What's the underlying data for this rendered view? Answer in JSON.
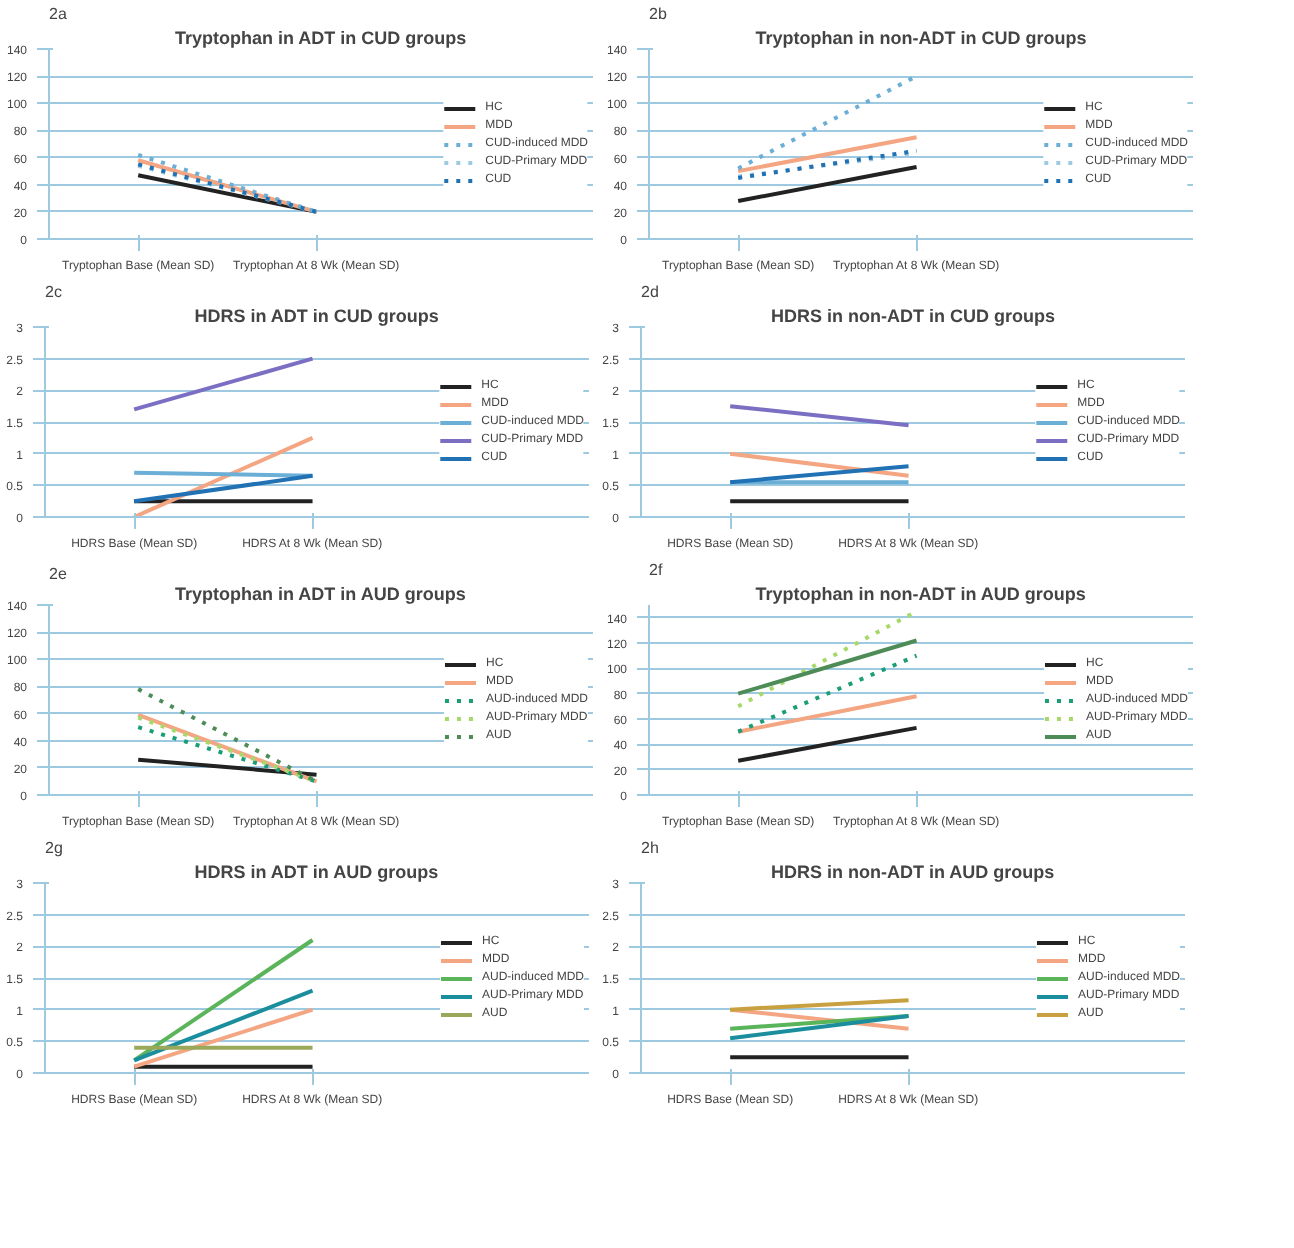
{
  "chart_data": [
    {
      "type": "line",
      "annotations": [
        "2a"
      ],
      "title": "Tryptophan in ADT in CUD groups",
      "categories": [
        "Tryptophan Base (Mean SD)",
        "Tryptophan At 8 Wk (Mean SD)"
      ],
      "ylim": [
        0,
        140
      ],
      "yticks": [
        0,
        20,
        40,
        60,
        80,
        100,
        120,
        140
      ],
      "grid": "y",
      "legend": "right",
      "series": [
        {
          "name": "HC",
          "color": "#222222",
          "line_style": "solid",
          "values": [
            47,
            20
          ]
        },
        {
          "name": "MDD",
          "color": "#f4a582",
          "line_style": "solid",
          "values": [
            58,
            20
          ]
        },
        {
          "name": "CUD-induced MDD",
          "color": "#6baed6",
          "line_style": "dotted",
          "values": [
            62,
            20
          ]
        },
        {
          "name": "CUD-Primary MDD",
          "color": "#9ecae1",
          "line_style": "dotted",
          "values": [
            54,
            20
          ]
        },
        {
          "name": "CUD",
          "color": "#2171b5",
          "line_style": "dotted",
          "values": [
            55,
            20
          ]
        }
      ]
    },
    {
      "type": "line",
      "annotations": [
        "2b"
      ],
      "title": "Tryptophan in non-ADT in CUD groups",
      "categories": [
        "Tryptophan Base (Mean SD)",
        "Tryptophan At 8 Wk (Mean SD)"
      ],
      "ylim": [
        0,
        140
      ],
      "yticks": [
        0,
        20,
        40,
        60,
        80,
        100,
        120,
        140
      ],
      "grid": "y",
      "legend": "right",
      "series": [
        {
          "name": "HC",
          "color": "#222222",
          "line_style": "solid",
          "values": [
            28,
            53
          ]
        },
        {
          "name": "MDD",
          "color": "#f4a582",
          "line_style": "solid",
          "values": [
            50,
            75
          ]
        },
        {
          "name": "CUD-induced MDD",
          "color": "#6baed6",
          "line_style": "dotted",
          "values": [
            52,
            120
          ]
        },
        {
          "name": "CUD-Primary MDD",
          "color": "#9ecae1",
          "line_style": "dotted",
          "values": [
            46,
            63
          ]
        },
        {
          "name": "CUD",
          "color": "#2171b5",
          "line_style": "dotted",
          "values": [
            45,
            65
          ]
        }
      ]
    },
    {
      "type": "line",
      "annotations": [
        "2c"
      ],
      "title": "HDRS in ADT in CUD groups",
      "categories": [
        "HDRS Base (Mean SD)",
        "HDRS At 8 Wk (Mean SD)"
      ],
      "ylim": [
        0,
        3
      ],
      "yticks": [
        0,
        0.5,
        1,
        1.5,
        2,
        2.5,
        3
      ],
      "grid": "y",
      "legend": "right",
      "series": [
        {
          "name": "HC",
          "color": "#222222",
          "line_style": "solid",
          "values": [
            0.25,
            0.25
          ]
        },
        {
          "name": "MDD",
          "color": "#f4a582",
          "line_style": "solid",
          "values": [
            0,
            1.25
          ]
        },
        {
          "name": "CUD-induced MDD",
          "color": "#6baed6",
          "line_style": "solid",
          "values": [
            0.7,
            0.65
          ]
        },
        {
          "name": "CUD-Primary MDD",
          "color": "#7b6fc4",
          "line_style": "solid",
          "values": [
            1.7,
            2.5
          ]
        },
        {
          "name": "CUD",
          "color": "#2171b5",
          "line_style": "solid",
          "values": [
            0.25,
            0.65
          ]
        }
      ]
    },
    {
      "type": "line",
      "annotations": [
        "2d"
      ],
      "title": "HDRS in non-ADT in CUD groups",
      "categories": [
        "HDRS Base (Mean SD)",
        "HDRS At 8 Wk (Mean SD)"
      ],
      "ylim": [
        0,
        3
      ],
      "yticks": [
        0,
        0.5,
        1,
        1.5,
        2,
        2.5,
        3
      ],
      "grid": "y",
      "legend": "right",
      "series": [
        {
          "name": "HC",
          "color": "#222222",
          "line_style": "solid",
          "values": [
            0.25,
            0.25
          ]
        },
        {
          "name": "MDD",
          "color": "#f4a582",
          "line_style": "solid",
          "values": [
            1.0,
            0.65
          ]
        },
        {
          "name": "CUD-induced MDD",
          "color": "#6baed6",
          "line_style": "solid",
          "values": [
            0.55,
            0.55
          ]
        },
        {
          "name": "CUD-Primary MDD",
          "color": "#7b6fc4",
          "line_style": "solid",
          "values": [
            1.75,
            1.45
          ]
        },
        {
          "name": "CUD",
          "color": "#2171b5",
          "line_style": "solid",
          "values": [
            0.55,
            0.8
          ]
        }
      ]
    },
    {
      "type": "line",
      "annotations": [
        "2e"
      ],
      "title": "Tryptophan in ADT in AUD groups",
      "categories": [
        "Tryptophan Base (Mean SD)",
        "Tryptophan At 8 Wk (Mean SD)"
      ],
      "ylim": [
        0,
        140
      ],
      "yticks": [
        0,
        20,
        40,
        60,
        80,
        100,
        120,
        140
      ],
      "grid": "y",
      "legend": "right",
      "series": [
        {
          "name": "HC",
          "color": "#222222",
          "line_style": "solid",
          "values": [
            26,
            15
          ]
        },
        {
          "name": "MDD",
          "color": "#f4a582",
          "line_style": "solid",
          "values": [
            59,
            10
          ]
        },
        {
          "name": "AUD-induced MDD",
          "color": "#1b9e77",
          "line_style": "dotted",
          "values": [
            50,
            10
          ]
        },
        {
          "name": "AUD-Primary MDD",
          "color": "#a6d96a",
          "line_style": "dotted",
          "values": [
            57,
            10
          ]
        },
        {
          "name": "AUD",
          "color": "#4d8c57",
          "line_style": "dotted",
          "values": [
            78,
            10
          ]
        }
      ]
    },
    {
      "type": "line",
      "annotations": [
        "2f"
      ],
      "title": "Tryptophan in non-ADT in AUD groups",
      "categories": [
        "Tryptophan Base (Mean SD)",
        "Tryptophan At 8 Wk (Mean SD)"
      ],
      "ylim": [
        0,
        150
      ],
      "yticks": [
        0,
        20,
        40,
        60,
        80,
        100,
        120,
        140
      ],
      "grid": "y",
      "legend": "right",
      "series": [
        {
          "name": "HC",
          "color": "#222222",
          "line_style": "solid",
          "values": [
            27,
            53
          ]
        },
        {
          "name": "MDD",
          "color": "#f4a582",
          "line_style": "solid",
          "values": [
            50,
            78
          ]
        },
        {
          "name": "AUD-induced MDD",
          "color": "#1b9e77",
          "line_style": "dotted",
          "values": [
            50,
            110
          ]
        },
        {
          "name": "AUD-Primary MDD",
          "color": "#a6d96a",
          "line_style": "dotted",
          "values": [
            70,
            145
          ]
        },
        {
          "name": "AUD",
          "color": "#4d8c57",
          "line_style": "solid",
          "values": [
            80,
            122
          ]
        }
      ]
    },
    {
      "type": "line",
      "annotations": [
        "2g"
      ],
      "title": "HDRS in ADT in AUD groups",
      "categories": [
        "HDRS Base (Mean SD)",
        "HDRS At 8 Wk (Mean SD)"
      ],
      "ylim": [
        0,
        3
      ],
      "yticks": [
        0,
        0.5,
        1,
        1.5,
        2,
        2.5,
        3
      ],
      "grid": "y",
      "legend": "right",
      "series": [
        {
          "name": "HC",
          "color": "#222222",
          "line_style": "solid",
          "values": [
            0.1,
            0.1
          ]
        },
        {
          "name": "MDD",
          "color": "#f4a582",
          "line_style": "solid",
          "values": [
            0.1,
            1.0
          ]
        },
        {
          "name": "AUD-induced MDD",
          "color": "#5ab45a",
          "line_style": "solid",
          "values": [
            0.2,
            2.1
          ]
        },
        {
          "name": "AUD-Primary MDD",
          "color": "#1b8e9e",
          "line_style": "solid",
          "values": [
            0.2,
            1.3
          ]
        },
        {
          "name": "AUD",
          "color": "#9aa85a",
          "line_style": "solid",
          "values": [
            0.4,
            0.4
          ]
        }
      ]
    },
    {
      "type": "line",
      "annotations": [
        "2h"
      ],
      "title": "HDRS in non-ADT in AUD groups",
      "categories": [
        "HDRS Base (Mean SD)",
        "HDRS At 8 Wk (Mean SD)"
      ],
      "ylim": [
        0,
        3
      ],
      "yticks": [
        0,
        0.5,
        1,
        1.5,
        2,
        2.5,
        3
      ],
      "grid": "y",
      "legend": "right",
      "series": [
        {
          "name": "HC",
          "color": "#222222",
          "line_style": "solid",
          "values": [
            0.25,
            0.25
          ]
        },
        {
          "name": "MDD",
          "color": "#f4a582",
          "line_style": "solid",
          "values": [
            1.0,
            0.7
          ]
        },
        {
          "name": "AUD-induced MDD",
          "color": "#5ab45a",
          "line_style": "solid",
          "values": [
            0.7,
            0.9
          ]
        },
        {
          "name": "AUD-Primary MDD",
          "color": "#1b8e9e",
          "line_style": "solid",
          "values": [
            0.55,
            0.9
          ]
        },
        {
          "name": "AUD",
          "color": "#c8a040",
          "line_style": "solid",
          "values": [
            1.0,
            1.15
          ]
        }
      ]
    }
  ]
}
